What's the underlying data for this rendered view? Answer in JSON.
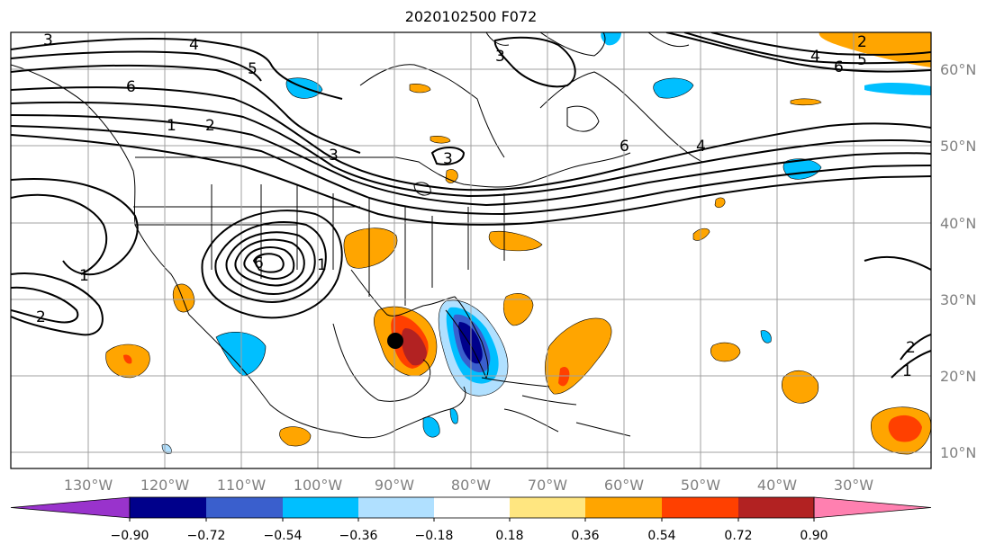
{
  "title": "2020102500 F072",
  "map": {
    "lat_labels": [
      "60°N",
      "50°N",
      "40°N",
      "30°N",
      "20°N",
      "10°N"
    ],
    "lon_labels": [
      "130°W",
      "120°W",
      "110°W",
      "100°W",
      "90°W",
      "80°W",
      "70°W",
      "60°W",
      "50°W",
      "40°W",
      "30°W"
    ],
    "contour_labels": [
      "3",
      "4",
      "5",
      "6",
      "1",
      "2",
      "3",
      "6",
      "4",
      "2",
      "3",
      "4",
      "5",
      "6",
      "3",
      "6",
      "1",
      "2",
      "1",
      "2",
      "1"
    ],
    "marker_color": "#000000"
  },
  "colorbar": {
    "ticks": [
      "−0.90",
      "−0.72",
      "−0.54",
      "−0.36",
      "−0.18",
      "0.18",
      "0.36",
      "0.54",
      "0.72",
      "0.90"
    ],
    "colors": [
      "#9933cc",
      "#00008b",
      "#3a5fcd",
      "#00bfff",
      "#b0e0ff",
      "#ffffff",
      "#ffe680",
      "#ffa500",
      "#ff4000",
      "#b22222",
      "#ff80b0"
    ]
  }
}
